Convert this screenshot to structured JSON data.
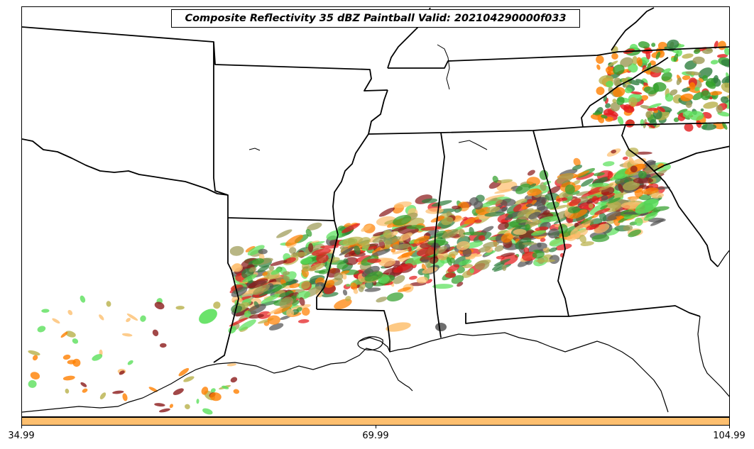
{
  "title": "Composite Reflectivity 35 dBZ Paintball Valid: 202104290000f033",
  "colorbar": {
    "color": "#fdbf6f",
    "tick_labels": [
      "34.99",
      "69.99",
      "104.99"
    ]
  },
  "map": {
    "region": "Southeastern United States",
    "boundary_color": "#000000",
    "paintball_colors": [
      "#e31a1c",
      "#ff7f00",
      "#fdbf6f",
      "#33a02c",
      "#5be05b",
      "#8b1a1a",
      "#555555",
      "#b8b04a",
      "#9c9a55",
      "#2f7f3f"
    ]
  }
}
